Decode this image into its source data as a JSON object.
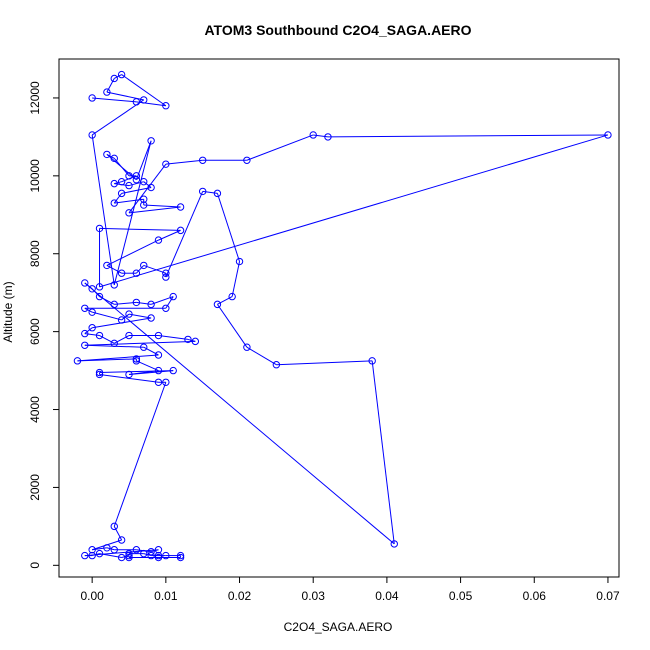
{
  "chart_data": {
    "type": "line",
    "title": "ATOM3 Southbound C2O4_SAGA.AERO",
    "xlabel": "C2O4_SAGA.AERO",
    "ylabel": "Altitude (m)",
    "xlim": [
      -0.0045,
      0.0715
    ],
    "ylim": [
      -300,
      13000
    ],
    "x_ticks": [
      0.0,
      0.01,
      0.02,
      0.03,
      0.04,
      0.05,
      0.06,
      0.07
    ],
    "x_tick_labels": [
      "0.00",
      "0.01",
      "0.02",
      "0.03",
      "0.04",
      "0.05",
      "0.06",
      "0.07"
    ],
    "y_ticks": [
      0,
      2000,
      4000,
      6000,
      8000,
      10000,
      12000
    ],
    "y_tick_labels": [
      "0",
      "2000",
      "4000",
      "6000",
      "8000",
      "10000",
      "12000"
    ],
    "grid": false,
    "color": "#0000ff",
    "series": [
      {
        "marker": "open-circle",
        "points": [
          [
            0.0,
            12000
          ],
          [
            0.006,
            11900
          ],
          [
            0.01,
            11800
          ],
          [
            0.004,
            12600
          ],
          [
            0.003,
            12500
          ],
          [
            0.002,
            12150
          ],
          [
            0.007,
            11950
          ],
          [
            0.0,
            11050
          ],
          [
            0.003,
            7200
          ],
          [
            0.008,
            10900
          ],
          [
            0.006,
            9900
          ],
          [
            0.002,
            10550
          ],
          [
            0.003,
            10450
          ],
          [
            0.005,
            10000
          ],
          [
            0.006,
            10000
          ],
          [
            0.004,
            9850
          ],
          [
            0.003,
            9800
          ],
          [
            0.005,
            9750
          ],
          [
            0.007,
            9850
          ],
          [
            0.008,
            9700
          ],
          [
            0.004,
            9550
          ],
          [
            0.003,
            9300
          ],
          [
            0.007,
            9400
          ],
          [
            0.007,
            9250
          ],
          [
            0.012,
            9200
          ],
          [
            0.005,
            9050
          ],
          [
            0.01,
            10300
          ],
          [
            0.015,
            10400
          ],
          [
            0.021,
            10400
          ],
          [
            0.03,
            11050
          ],
          [
            0.032,
            11000
          ],
          [
            0.07,
            11050
          ],
          [
            0.001,
            7150
          ],
          [
            0.001,
            8650
          ],
          [
            0.012,
            8600
          ],
          [
            0.009,
            8350
          ],
          [
            0.002,
            7700
          ],
          [
            0.004,
            7500
          ],
          [
            0.006,
            7500
          ],
          [
            0.007,
            7700
          ],
          [
            0.01,
            7500
          ],
          [
            0.01,
            7400
          ],
          [
            0.015,
            9600
          ],
          [
            0.017,
            9550
          ],
          [
            0.02,
            7800
          ],
          [
            0.019,
            6900
          ],
          [
            0.017,
            6700
          ],
          [
            0.021,
            5600
          ],
          [
            0.025,
            5150
          ],
          [
            0.038,
            5250
          ],
          [
            0.041,
            550
          ],
          [
            -0.001,
            7250
          ],
          [
            0.0,
            7100
          ],
          [
            0.001,
            6900
          ],
          [
            0.003,
            6700
          ],
          [
            0.006,
            6750
          ],
          [
            0.008,
            6700
          ],
          [
            0.011,
            6900
          ],
          [
            0.01,
            6600
          ],
          [
            -0.001,
            6600
          ],
          [
            0.0,
            6500
          ],
          [
            0.004,
            6300
          ],
          [
            0.005,
            6450
          ],
          [
            0.008,
            6350
          ],
          [
            0.0,
            6100
          ],
          [
            -0.001,
            5950
          ],
          [
            0.001,
            5900
          ],
          [
            0.003,
            5700
          ],
          [
            0.005,
            5900
          ],
          [
            0.009,
            5900
          ],
          [
            0.013,
            5800
          ],
          [
            0.014,
            5750
          ],
          [
            -0.001,
            5650
          ],
          [
            0.007,
            5600
          ],
          [
            0.009,
            5400
          ],
          [
            -0.002,
            5250
          ],
          [
            0.006,
            5300
          ],
          [
            0.006,
            5250
          ],
          [
            0.009,
            5000
          ],
          [
            0.005,
            4900
          ],
          [
            0.011,
            5000
          ],
          [
            0.001,
            4950
          ],
          [
            0.001,
            4900
          ],
          [
            0.009,
            4700
          ],
          [
            0.01,
            4700
          ],
          [
            0.003,
            1000
          ],
          [
            0.004,
            650
          ],
          [
            0.0,
            400
          ],
          [
            0.002,
            450
          ],
          [
            0.003,
            400
          ],
          [
            0.006,
            400
          ],
          [
            0.008,
            350
          ],
          [
            0.009,
            400
          ],
          [
            -0.001,
            250
          ],
          [
            0.0,
            250
          ],
          [
            0.001,
            300
          ],
          [
            0.004,
            200
          ],
          [
            0.005,
            250
          ],
          [
            0.005,
            300
          ],
          [
            0.007,
            300
          ],
          [
            0.008,
            250
          ],
          [
            0.009,
            250
          ],
          [
            0.01,
            250
          ],
          [
            0.012,
            250
          ],
          [
            0.012,
            200
          ],
          [
            0.009,
            200
          ],
          [
            0.005,
            200
          ]
        ]
      }
    ]
  }
}
